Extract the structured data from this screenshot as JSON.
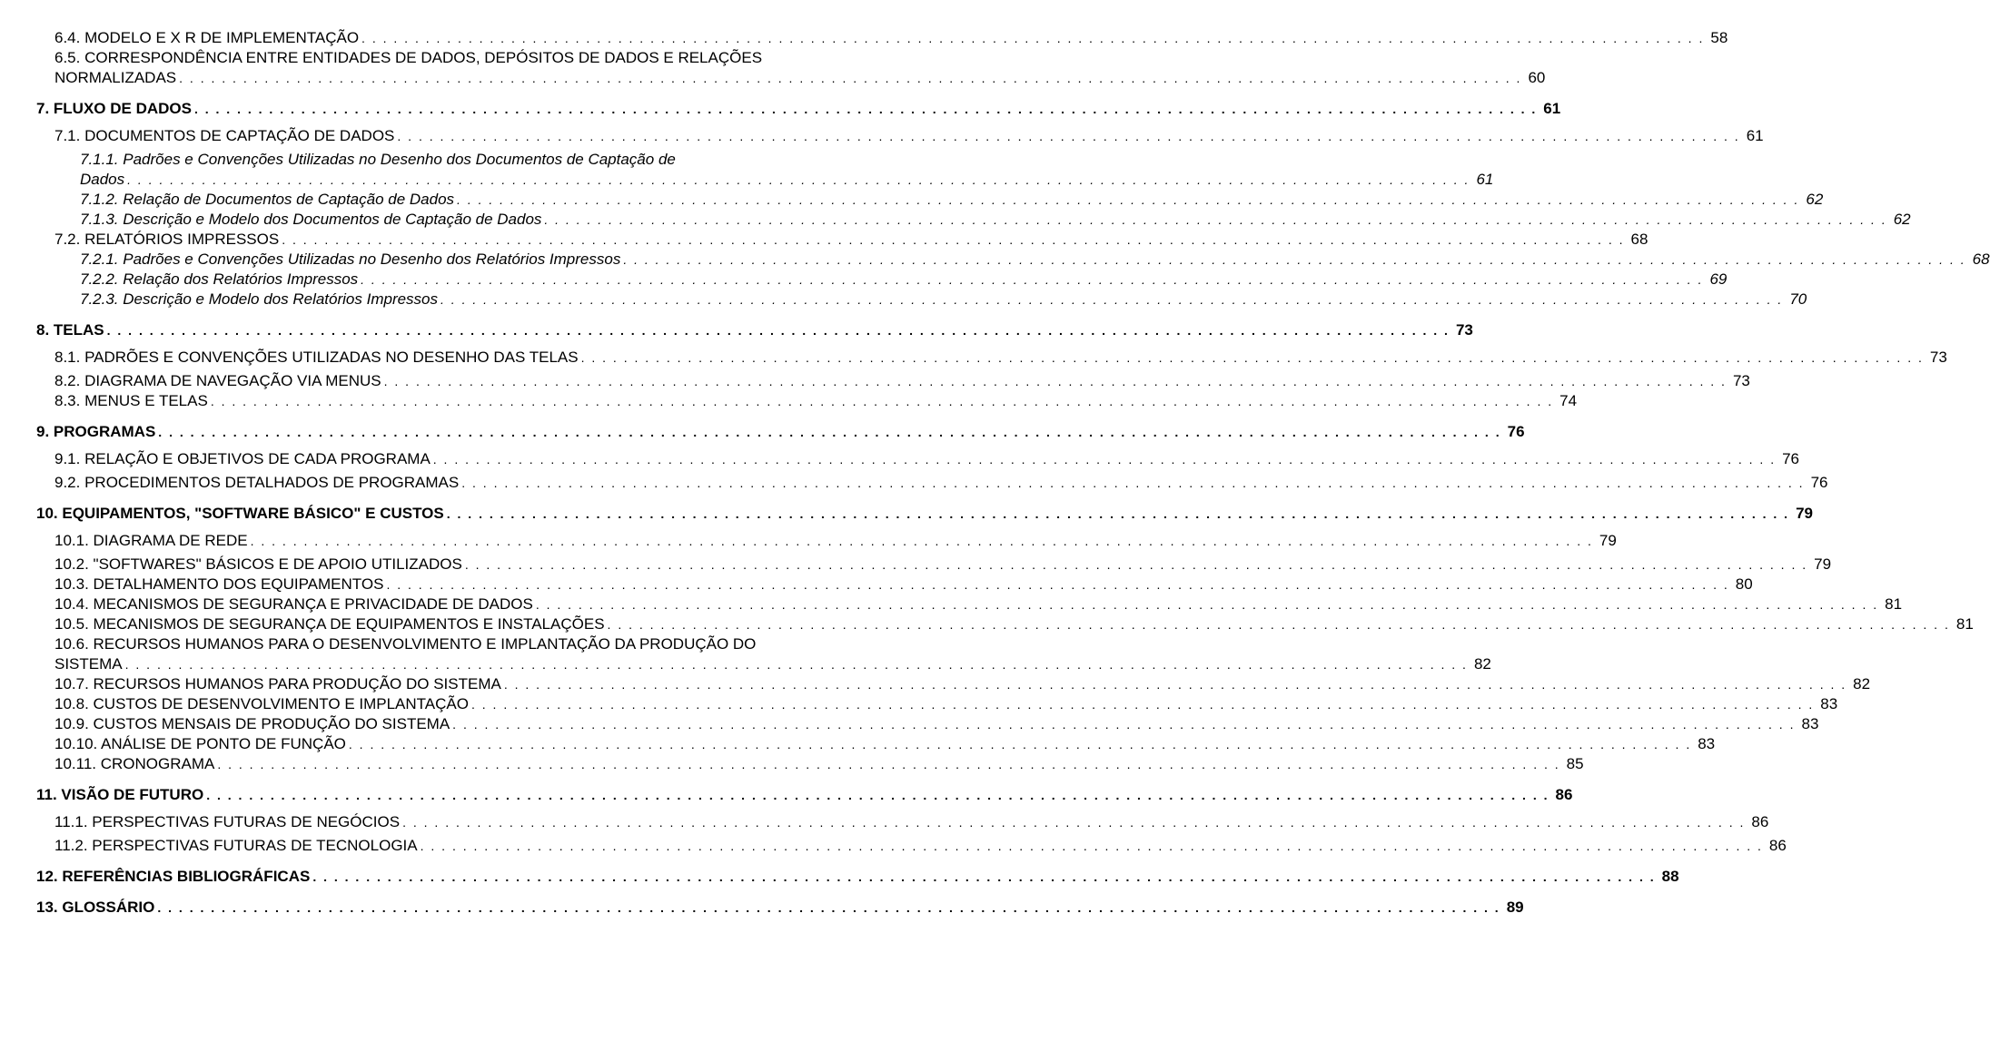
{
  "leader": ". . . . . . . . . . . . . . . . . . . . . . . . . . . . . . . . . . . . . . . . . . . . . . . . . . . . . . . . . . . . . . . . . . . . . . . . . . . . . . . . . . . . . . . . . . . . . . . . . . . . . . . . . . . . . . . . . . . . . . . . . . . . . .",
  "entries": [
    {
      "indent": 0,
      "bold": false,
      "title": "6.4. MODELO E X R DE IMPLEMENTAÇÃO",
      "page": "58",
      "gapBefore": false
    },
    {
      "indent": 0,
      "bold": false,
      "wrap": true,
      "titleFirst": "6.5. CORRESPONDÊNCIA ENTRE ENTIDADES DE DADOS, DEPÓSITOS DE DADOS E RELAÇÕES",
      "titleCont": "NORMALIZADAS",
      "page": "60"
    },
    {
      "indent": -1,
      "bold": true,
      "title": "7. FLUXO DE DADOS",
      "page": "61",
      "gapBefore": true,
      "header": true
    },
    {
      "indent": 0,
      "bold": false,
      "title": "7.1. DOCUMENTOS DE CAPTAÇÃO DE DADOS",
      "page": "61",
      "gapBefore": true
    },
    {
      "indent": 1,
      "bold": false,
      "italic": true,
      "title": "7.1.1. Padrões e Convenções Utilizadas no Desenho dos Documentos de Captação de",
      "titleCont": "Dados",
      "page": "61",
      "wrap": true
    },
    {
      "indent": 1,
      "bold": false,
      "italic": true,
      "title": "7.1.2. Relação de Documentos de Captação de Dados",
      "page": "62"
    },
    {
      "indent": 1,
      "bold": false,
      "italic": true,
      "title": "7.1.3. Descrição e Modelo dos Documentos de Captação de Dados",
      "page": "62"
    },
    {
      "indent": 0,
      "bold": false,
      "title": "7.2. RELATÓRIOS IMPRESSOS",
      "page": "68"
    },
    {
      "indent": 1,
      "bold": false,
      "italic": true,
      "title": "7.2.1. Padrões e Convenções Utilizadas no Desenho dos Relatórios Impressos",
      "page": "68"
    },
    {
      "indent": 1,
      "bold": false,
      "italic": true,
      "title": "7.2.2. Relação dos Relatórios Impressos",
      "page": "69"
    },
    {
      "indent": 1,
      "bold": false,
      "italic": true,
      "title": "7.2.3. Descrição e Modelo dos Relatórios Impressos",
      "page": "70"
    },
    {
      "indent": -1,
      "bold": true,
      "title": "8. TELAS",
      "page": "73",
      "gapBefore": true,
      "header": true
    },
    {
      "indent": 0,
      "bold": false,
      "title": "8.1. PADRÕES E CONVENÇÕES UTILIZADAS NO DESENHO DAS TELAS",
      "page": "73",
      "gapBefore": true
    },
    {
      "indent": 0,
      "bold": false,
      "title": "8.2. DIAGRAMA DE NAVEGAÇÃO VIA MENUS",
      "page": "73"
    },
    {
      "indent": 0,
      "bold": false,
      "title": "8.3. MENUS E TELAS",
      "page": "74"
    },
    {
      "indent": -1,
      "bold": true,
      "title": "9. PROGRAMAS",
      "page": "76",
      "gapBefore": true,
      "header": true
    },
    {
      "indent": 0,
      "bold": false,
      "title": "9.1. RELAÇÃO E OBJETIVOS DE CADA PROGRAMA",
      "page": "76",
      "gapBefore": true
    },
    {
      "indent": 0,
      "bold": false,
      "title": "9.2. PROCEDIMENTOS DETALHADOS DE PROGRAMAS",
      "page": "76"
    },
    {
      "indent": -1,
      "bold": true,
      "title": "10. EQUIPAMENTOS, \"SOFTWARE BÁSICO\" E CUSTOS",
      "page": "79",
      "gapBefore": true,
      "header": true
    },
    {
      "indent": 0,
      "bold": false,
      "title": "10.1. DIAGRAMA DE REDE",
      "page": "79",
      "gapBefore": true
    },
    {
      "indent": 0,
      "bold": false,
      "title": "10.2. \"SOFTWARES\" BÁSICOS E DE APOIO UTILIZADOS",
      "page": "79"
    },
    {
      "indent": 0,
      "bold": false,
      "title": "10.3. DETALHAMENTO DOS EQUIPAMENTOS",
      "page": "80"
    },
    {
      "indent": 0,
      "bold": false,
      "title": "10.4. MECANISMOS DE SEGURANÇA E PRIVACIDADE DE DADOS",
      "page": "81"
    },
    {
      "indent": 0,
      "bold": false,
      "title": "10.5. MECANISMOS DE SEGURANÇA DE EQUIPAMENTOS E INSTALAÇÕES",
      "page": "81"
    },
    {
      "indent": 0,
      "bold": false,
      "wrap": true,
      "titleFirst": "10.6. RECURSOS HUMANOS PARA O DESENVOLVIMENTO E IMPLANTAÇÃO DA PRODUÇÃO DO",
      "titleCont": "SISTEMA",
      "page": "82"
    },
    {
      "indent": 0,
      "bold": false,
      "title": "10.7. RECURSOS HUMANOS PARA PRODUÇÃO DO SISTEMA",
      "page": "82"
    },
    {
      "indent": 0,
      "bold": false,
      "title": "10.8. CUSTOS DE DESENVOLVIMENTO E IMPLANTAÇÃO",
      "page": "83"
    },
    {
      "indent": 0,
      "bold": false,
      "title": "10.9. CUSTOS MENSAIS DE PRODUÇÃO DO SISTEMA",
      "page": "83"
    },
    {
      "indent": 0,
      "bold": false,
      "title": "10.10. ANÁLISE DE PONTO DE FUNÇÃO",
      "page": "83"
    },
    {
      "indent": 0,
      "bold": false,
      "title": "10.11. CRONOGRAMA",
      "page": "85"
    },
    {
      "indent": -1,
      "bold": true,
      "title": "11. VISÃO DE FUTURO",
      "page": "86",
      "gapBefore": true,
      "header": true
    },
    {
      "indent": 0,
      "bold": false,
      "title": "11.1. PERSPECTIVAS FUTURAS DE NEGÓCIOS",
      "page": "86",
      "gapBefore": true
    },
    {
      "indent": 0,
      "bold": false,
      "title": "11.2. PERSPECTIVAS FUTURAS DE TECNOLOGIA",
      "page": "86"
    },
    {
      "indent": -1,
      "bold": true,
      "title": "12. REFERÊNCIAS BIBLIOGRÁFICAS",
      "page": "88",
      "gapBefore": true,
      "header": true
    },
    {
      "indent": -1,
      "bold": true,
      "title": "13. GLOSSÁRIO",
      "page": "89",
      "gapBefore": true,
      "header": true
    }
  ]
}
